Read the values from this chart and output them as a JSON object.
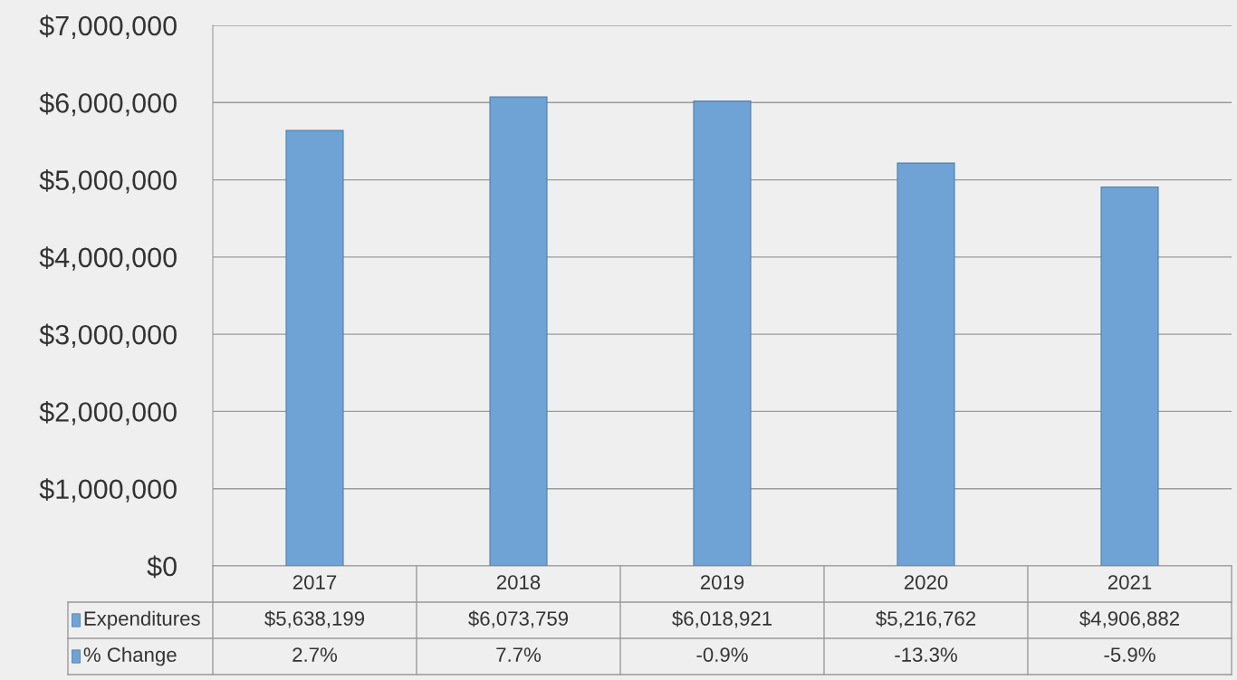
{
  "chart_data": {
    "type": "bar",
    "categories": [
      "2017",
      "2018",
      "2019",
      "2020",
      "2021"
    ],
    "series": [
      {
        "name": "Expenditures",
        "color": "#6fa3d6",
        "values": [
          5638199,
          6073759,
          6018921,
          5216762,
          4906882
        ],
        "value_labels": [
          "$5,638,199",
          "$6,073,759",
          "$6,018,921",
          "$5,216,762",
          "$4,906,882"
        ]
      }
    ],
    "ylim": [
      0,
      7000000
    ],
    "yticks": [
      {
        "value": 0,
        "label": "$0"
      },
      {
        "value": 1000000,
        "label": "$1,000,000"
      },
      {
        "value": 2000000,
        "label": "$2,000,000"
      },
      {
        "value": 3000000,
        "label": "$3,000,000"
      },
      {
        "value": 4000000,
        "label": "$4,000,000"
      },
      {
        "value": 5000000,
        "label": "$5,000,000"
      },
      {
        "value": 6000000,
        "label": "$6,000,000"
      },
      {
        "value": 7000000,
        "label": "$7,000,000"
      }
    ],
    "grid": "y",
    "legend": "bottom",
    "annotations": [
      "% Change",
      "2.7%",
      "7.7%",
      "-0.9%",
      "-13.3%",
      "-5.9%"
    ]
  }
}
